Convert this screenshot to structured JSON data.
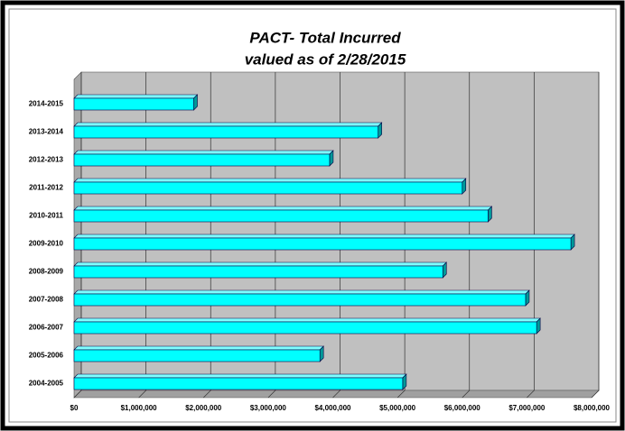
{
  "chart_data": {
    "type": "bar",
    "orientation": "horizontal",
    "title": "PACT- Total Incurred",
    "subtitle": "valued as of 2/28/2015",
    "categories": [
      "2004-2005",
      "2005-2006",
      "2006-2007",
      "2007-2008",
      "2008-2009",
      "2009-2010",
      "2010-2011",
      "2011-2012",
      "2012-2013",
      "2013-2014",
      "2014-2015"
    ],
    "values": [
      5080000,
      3800000,
      7150000,
      6980000,
      5700000,
      7680000,
      6400000,
      6000000,
      3950000,
      4700000,
      1850000
    ],
    "color": "#00ffff",
    "xlim": [
      0,
      8000000
    ],
    "xticks": [
      {
        "value": 0,
        "label": "$0"
      },
      {
        "value": 1000000,
        "label": "$1,000,000"
      },
      {
        "value": 2000000,
        "label": "$2,000,000"
      },
      {
        "value": 3000000,
        "label": "$3,000,000"
      },
      {
        "value": 4000000,
        "label": "$4,000,000"
      },
      {
        "value": 5000000,
        "label": "$5,000,000"
      },
      {
        "value": 6000000,
        "label": "$6,000,000"
      },
      {
        "value": 7000000,
        "label": "$7,000,000"
      },
      {
        "value": 8000000,
        "label": "$8,000,000"
      }
    ],
    "grid": true
  }
}
